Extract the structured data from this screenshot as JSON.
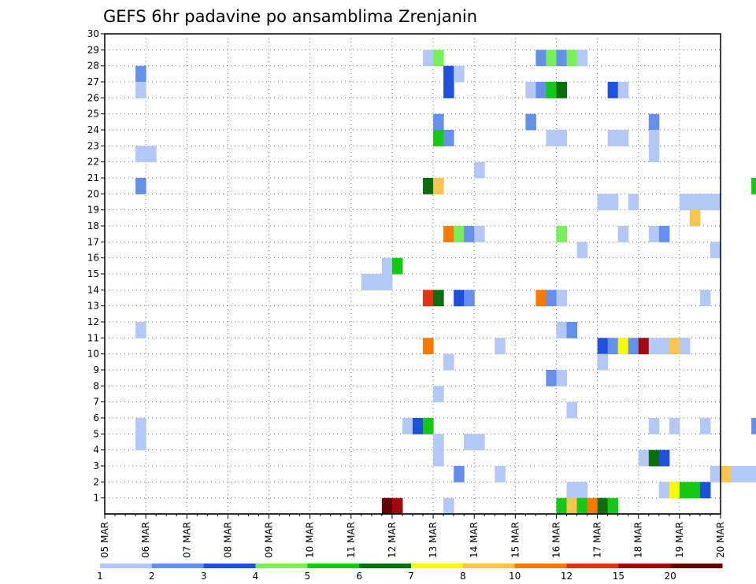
{
  "chart_data": {
    "type": "heatmap",
    "title": "GEFS 6hr padavine po ansamblima Zrenjanin",
    "y_range": [
      0,
      30
    ],
    "y_ticks": [
      "1",
      "2",
      "3",
      "4",
      "5",
      "6",
      "7",
      "8",
      "9",
      "10",
      "11",
      "12",
      "13",
      "14",
      "15",
      "16",
      "17",
      "18",
      "19",
      "20",
      "21",
      "22",
      "23",
      "24",
      "25",
      "26",
      "27",
      "28",
      "29",
      "30"
    ],
    "x_range": [
      "05 MAR 00h",
      "20 MAR 00h"
    ],
    "time_step_hours": 6,
    "x_ticks": [
      "05 MAR",
      "06 MAR",
      "07 MAR",
      "08 MAR",
      "09 MAR",
      "10 MAR",
      "11 MAR",
      "12 MAR",
      "13 MAR",
      "14 MAR",
      "15 MAR",
      "16 MAR",
      "17 MAR",
      "18 MAR",
      "19 MAR",
      "20 MAR"
    ],
    "grid": true,
    "legend": {
      "placement": "bottom",
      "thresholds": [
        "1",
        "2",
        "3",
        "4",
        "5",
        "6",
        "7",
        "8",
        "10",
        "12",
        "15",
        "20"
      ],
      "colors": [
        "#b4c8f5",
        "#6490eb",
        "#1e50dc",
        "#78f05a",
        "#14c814",
        "#0a6e0a",
        "#fafa00",
        "#fac34b",
        "#fa7800",
        "#e13214",
        "#a00a0a",
        "#640000"
      ]
    },
    "cells_note": "each cell: [forecast day, 6-hour step of the day (0=00h,1=06h,2=12h,3=18h), ensemble member, precipitation class index 1-12]",
    "cells": [
      [
        0,
        3,
        27,
        2
      ],
      [
        0,
        3,
        26,
        1
      ],
      [
        0,
        3,
        22,
        1
      ],
      [
        1,
        0,
        22,
        1
      ],
      [
        0,
        3,
        20,
        2
      ],
      [
        0,
        3,
        11,
        1
      ],
      [
        0,
        3,
        5,
        1
      ],
      [
        0,
        3,
        4,
        1
      ],
      [
        6,
        1,
        14,
        1
      ],
      [
        6,
        2,
        14,
        1
      ],
      [
        6,
        3,
        15,
        1
      ],
      [
        6,
        3,
        14,
        1
      ],
      [
        7,
        0,
        15,
        5
      ],
      [
        6,
        3,
        0,
        12
      ],
      [
        7,
        0,
        0,
        11
      ],
      [
        7,
        1,
        5,
        1
      ],
      [
        7,
        2,
        5,
        3
      ],
      [
        7,
        3,
        5,
        5
      ],
      [
        7,
        3,
        28,
        1
      ],
      [
        8,
        0,
        28,
        4
      ],
      [
        8,
        0,
        24,
        2
      ],
      [
        8,
        0,
        23,
        5
      ],
      [
        8,
        1,
        23,
        2
      ],
      [
        8,
        1,
        27,
        3
      ],
      [
        8,
        1,
        26,
        3
      ],
      [
        8,
        2,
        27,
        1
      ],
      [
        7,
        3,
        20,
        6
      ],
      [
        8,
        0,
        20,
        8
      ],
      [
        7,
        3,
        13,
        10
      ],
      [
        8,
        0,
        13,
        6
      ],
      [
        7,
        3,
        10,
        9
      ],
      [
        8,
        1,
        17,
        9
      ],
      [
        8,
        2,
        17,
        4
      ],
      [
        8,
        3,
        17,
        2
      ],
      [
        9,
        0,
        17,
        1
      ],
      [
        8,
        2,
        13,
        3
      ],
      [
        8,
        3,
        13,
        2
      ],
      [
        8,
        0,
        7,
        1
      ],
      [
        8,
        0,
        3,
        1
      ],
      [
        8,
        0,
        4,
        1
      ],
      [
        8,
        1,
        9,
        1
      ],
      [
        8,
        2,
        2,
        2
      ],
      [
        8,
        1,
        0,
        1
      ],
      [
        8,
        3,
        4,
        1
      ],
      [
        9,
        0,
        4,
        1
      ],
      [
        9,
        0,
        21,
        1
      ],
      [
        9,
        2,
        10,
        1
      ],
      [
        9,
        2,
        2,
        1
      ],
      [
        10,
        2,
        28,
        2
      ],
      [
        10,
        3,
        28,
        4
      ],
      [
        11,
        0,
        28,
        2
      ],
      [
        11,
        1,
        28,
        4
      ],
      [
        11,
        2,
        28,
        1
      ],
      [
        10,
        1,
        26,
        1
      ],
      [
        10,
        2,
        26,
        2
      ],
      [
        10,
        3,
        26,
        5
      ],
      [
        11,
        0,
        26,
        6
      ],
      [
        10,
        1,
        24,
        2
      ],
      [
        10,
        3,
        23,
        1
      ],
      [
        11,
        0,
        23,
        1
      ],
      [
        11,
        0,
        17,
        4
      ],
      [
        10,
        2,
        13,
        9
      ],
      [
        10,
        3,
        13,
        2
      ],
      [
        11,
        0,
        13,
        1
      ],
      [
        11,
        0,
        11,
        1
      ],
      [
        11,
        1,
        11,
        2
      ],
      [
        10,
        3,
        8,
        2
      ],
      [
        11,
        0,
        8,
        1
      ],
      [
        11,
        1,
        6,
        1
      ],
      [
        11,
        0,
        0,
        5
      ],
      [
        11,
        1,
        1,
        1
      ],
      [
        11,
        1,
        0,
        8
      ],
      [
        11,
        2,
        1,
        1
      ],
      [
        11,
        2,
        0,
        5
      ],
      [
        11,
        3,
        0,
        9
      ],
      [
        12,
        0,
        0,
        6
      ],
      [
        12,
        1,
        0,
        5
      ],
      [
        11,
        2,
        16,
        1
      ],
      [
        12,
        0,
        19,
        1
      ],
      [
        12,
        1,
        19,
        1
      ],
      [
        12,
        1,
        26,
        3
      ],
      [
        12,
        2,
        26,
        1
      ],
      [
        12,
        1,
        23,
        1
      ],
      [
        12,
        2,
        23,
        1
      ],
      [
        12,
        0,
        10,
        3
      ],
      [
        12,
        1,
        10,
        2
      ],
      [
        12,
        2,
        10,
        7
      ],
      [
        12,
        3,
        10,
        2
      ],
      [
        13,
        0,
        10,
        11
      ],
      [
        13,
        1,
        10,
        1
      ],
      [
        13,
        2,
        10,
        1
      ],
      [
        13,
        3,
        10,
        8
      ],
      [
        14,
        0,
        10,
        1
      ],
      [
        12,
        0,
        9,
        1
      ],
      [
        12,
        3,
        19,
        1
      ],
      [
        12,
        2,
        17,
        1
      ],
      [
        13,
        1,
        17,
        1
      ],
      [
        13,
        2,
        17,
        2
      ],
      [
        13,
        1,
        24,
        2
      ],
      [
        13,
        1,
        23,
        1
      ],
      [
        13,
        1,
        22,
        1
      ],
      [
        13,
        0,
        3,
        1
      ],
      [
        13,
        1,
        3,
        6
      ],
      [
        13,
        2,
        3,
        3
      ],
      [
        13,
        1,
        5,
        1
      ],
      [
        13,
        3,
        5,
        1
      ],
      [
        13,
        2,
        1,
        1
      ],
      [
        13,
        3,
        1,
        7
      ],
      [
        14,
        0,
        1,
        5
      ],
      [
        14,
        1,
        1,
        5
      ],
      [
        14,
        2,
        1,
        3
      ],
      [
        14,
        0,
        19,
        1
      ],
      [
        14,
        1,
        19,
        1
      ],
      [
        14,
        2,
        19,
        1
      ],
      [
        14,
        1,
        18,
        8
      ],
      [
        14,
        3,
        16,
        1
      ],
      [
        14,
        2,
        13,
        1
      ],
      [
        14,
        2,
        5,
        1
      ],
      [
        14,
        3,
        19,
        1
      ],
      [
        14,
        3,
        2,
        1
      ],
      [
        15,
        0,
        2,
        8
      ],
      [
        15,
        1,
        2,
        1
      ],
      [
        15,
        2,
        2,
        1
      ],
      [
        15,
        3,
        2,
        1
      ],
      [
        15,
        3,
        5,
        2
      ],
      [
        15,
        3,
        20,
        5
      ]
    ]
  }
}
